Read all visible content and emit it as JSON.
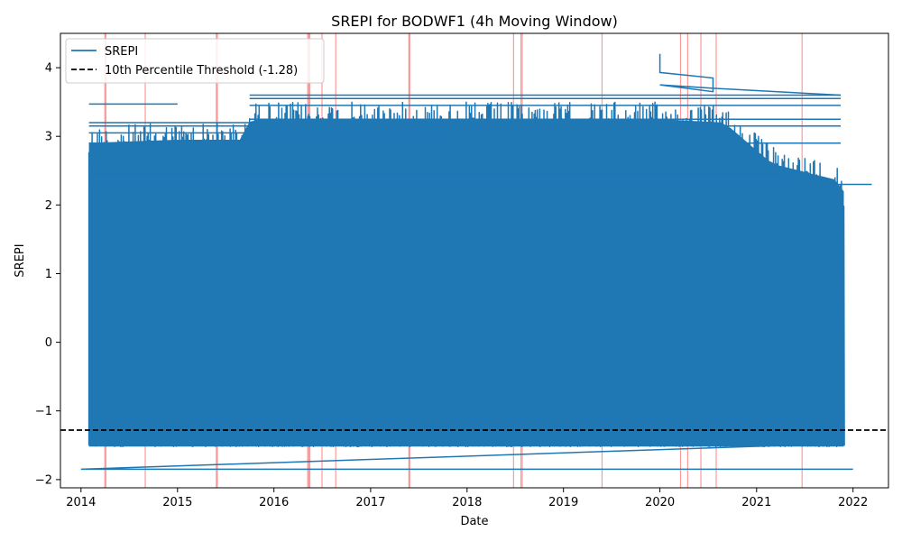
{
  "chart_data": {
    "type": "line",
    "title": "SREPI for BODWF1 (4h Moving Window)",
    "xlabel": "Date",
    "ylabel": "SREPI",
    "xlim": [
      "2013-10-15",
      "2022-05-15"
    ],
    "ylim": [
      -2.12,
      4.5
    ],
    "x_ticks": [
      "2014",
      "2015",
      "2016",
      "2017",
      "2018",
      "2019",
      "2020",
      "2021",
      "2022"
    ],
    "x_tick_values": [
      "2014-01-01",
      "2015-01-01",
      "2016-01-01",
      "2017-01-01",
      "2018-01-01",
      "2019-01-01",
      "2020-01-01",
      "2021-01-01",
      "2022-01-01"
    ],
    "y_ticks": [
      -2,
      -1,
      0,
      1,
      2,
      3,
      4
    ],
    "y_tick_labels": [
      "−2",
      "−1",
      "0",
      "1",
      "2",
      "3",
      "4"
    ],
    "grid": false,
    "legend_position": "top-left",
    "series": [
      {
        "name": "SREPI",
        "color": "#1f77b4",
        "style": "solid",
        "data_range": {
          "x_start": "2014-01-01",
          "x_end": "2022-01-01",
          "y_min": -1.85,
          "y_max": 4.2
        },
        "notable_points": [
          {
            "x": "2014-01-01",
            "y": -1.85
          },
          {
            "x": "2022-01-01",
            "y": -1.85
          },
          {
            "x": "2021-10-01",
            "y": -1.48
          },
          {
            "x": "2020-01-01",
            "y": 4.2
          },
          {
            "x": "2020-01-01",
            "y": 3.93
          },
          {
            "x": "2020-07-20",
            "y": 3.85
          },
          {
            "x": "2020-07-20",
            "y": 3.65
          },
          {
            "x": "2021-11-15",
            "y": 3.6
          }
        ]
      },
      {
        "name": "10th Percentile Threshold (-1.28)",
        "color": "#000000",
        "style": "dashed",
        "y": -1.28
      }
    ],
    "event_markers": {
      "color": "#ff0000",
      "dates": [
        "2014-04-01",
        "2014-04-05",
        "2014-09-01",
        "2015-05-28",
        "2015-06-01",
        "2016-05-08",
        "2016-05-12",
        "2016-05-16",
        "2016-07-01",
        "2016-08-22",
        "2017-05-26",
        "2017-05-29",
        "2018-06-26",
        "2018-07-24",
        "2018-07-29",
        "2019-05-27",
        "2020-03-19",
        "2020-04-15",
        "2020-06-04",
        "2020-08-01",
        "2021-06-22"
      ]
    }
  }
}
